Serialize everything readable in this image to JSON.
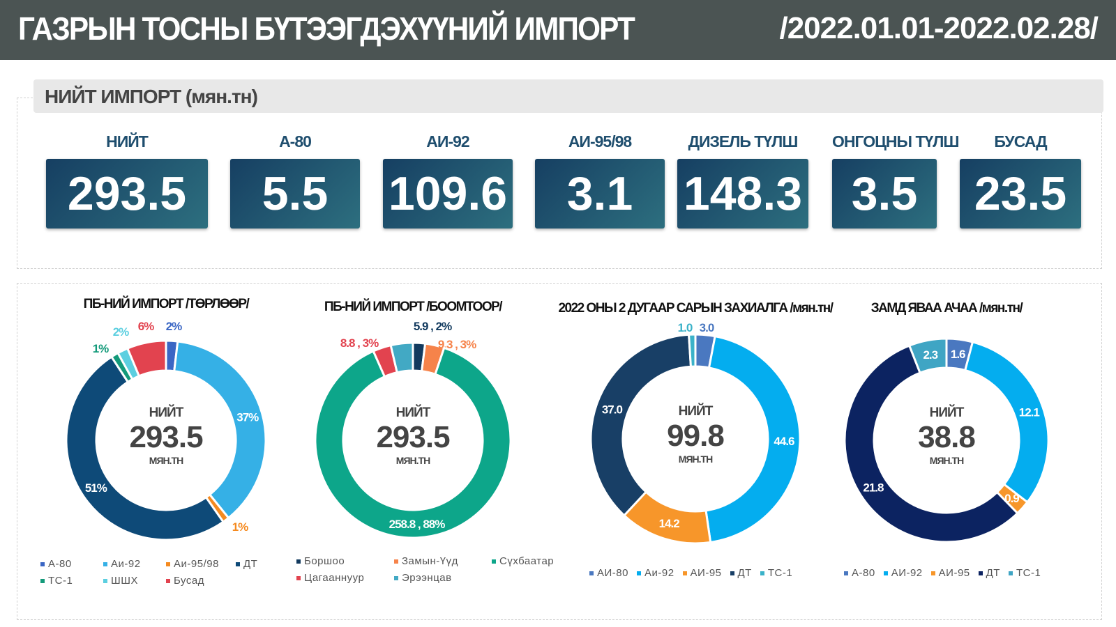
{
  "header": {
    "title": "ГАЗРЫН ТОСНЫ БҮТЭЭГДЭХҮҮНИЙ ИМПОРТ",
    "period": "/2022.01.01-2022.02.28/"
  },
  "summary": {
    "title": "НИЙТ ИМПОРТ (мян.тн)",
    "items": [
      {
        "label": "НИЙТ",
        "value": "293.5"
      },
      {
        "label": "А-80",
        "value": "5.5"
      },
      {
        "label": "АИ-92",
        "value": "109.6"
      },
      {
        "label": "АИ-95/98",
        "value": "3.1"
      },
      {
        "label": "ДИЗЕЛЬ ТҮЛШ",
        "value": "148.3"
      },
      {
        "label": "ОНГОЦНЫ ТҮЛШ",
        "value": "3.5"
      },
      {
        "label": "БУСАД",
        "value": "23.5"
      }
    ]
  },
  "chart_data": [
    {
      "type": "pie",
      "title": "ПБ-НИЙ ИМПОРТ /ТӨРЛӨӨР/",
      "center_label": "НИЙТ",
      "center_value": "293.5",
      "center_unit": "МЯН.ТН",
      "categories": [
        "А-80",
        "Аи-92",
        "Аи-95/98",
        "ДТ",
        "ТС-1",
        "ШШХ",
        "Бусад"
      ],
      "values": [
        5.5,
        109.6,
        3.1,
        148.3,
        3.5,
        5.0,
        18.5
      ],
      "labels": [
        "2%",
        "37%",
        "1%",
        "51%",
        "1%",
        "2%",
        "6%"
      ],
      "colors": [
        "#3a66c4",
        "#35b0e6",
        "#f58a1f",
        "#0e4a78",
        "#139a7a",
        "#5ccfe0",
        "#e2434f"
      ]
    },
    {
      "type": "pie",
      "title": "ПБ-НИЙ ИМПОРТ /БООМТООР/",
      "center_label": "НИЙТ",
      "center_value": "293.5",
      "center_unit": "МЯН.ТН",
      "categories": [
        "Боршоо",
        "Замын-Үүд",
        "Сүхбаатар",
        "Цагааннуур",
        "Эрээнцав"
      ],
      "values": [
        5.9,
        9.3,
        258.8,
        8.8,
        10.7
      ],
      "labels": [
        "5.9 , 2%",
        "9.3 , 3%",
        "258.8 , 88%",
        "8.8 , 3%",
        ""
      ],
      "colors": [
        "#123a5e",
        "#f6834a",
        "#0da68a",
        "#e2434f",
        "#42a9c4"
      ]
    },
    {
      "type": "pie",
      "title": "2022 ОНЫ 2 ДУГААР САРЫН ЗАХИАЛГА /мян.тн/",
      "center_label": "НИЙТ",
      "center_value": "99.8",
      "center_unit": "МЯН.ТН",
      "categories": [
        "АИ-80",
        "Аи-92",
        "АИ-95",
        "ДТ",
        "ТС-1"
      ],
      "values": [
        3.0,
        44.6,
        14.2,
        37.0,
        1.0
      ],
      "labels": [
        "3.0",
        "44.6",
        "14.2",
        "37.0",
        "1.0"
      ],
      "colors": [
        "#4a78c0",
        "#04adef",
        "#f7962a",
        "#183f66",
        "#3ab2c9"
      ]
    },
    {
      "type": "pie",
      "title": "ЗАМД ЯВАА АЧАА /мян.тн/",
      "center_label": "НИЙТ",
      "center_value": "38.8",
      "center_unit": "МЯН.ТН",
      "categories": [
        "А-80",
        "АИ-92",
        "АИ-95",
        "ДТ",
        "ТС-1"
      ],
      "values": [
        1.6,
        12.1,
        0.9,
        21.8,
        2.3
      ],
      "labels": [
        "1.6",
        "12.1",
        "0.9",
        "21.8",
        "2.3"
      ],
      "colors": [
        "#4a78c0",
        "#04adef",
        "#f7962a",
        "#0c2361",
        "#3fa5c4"
      ]
    }
  ]
}
